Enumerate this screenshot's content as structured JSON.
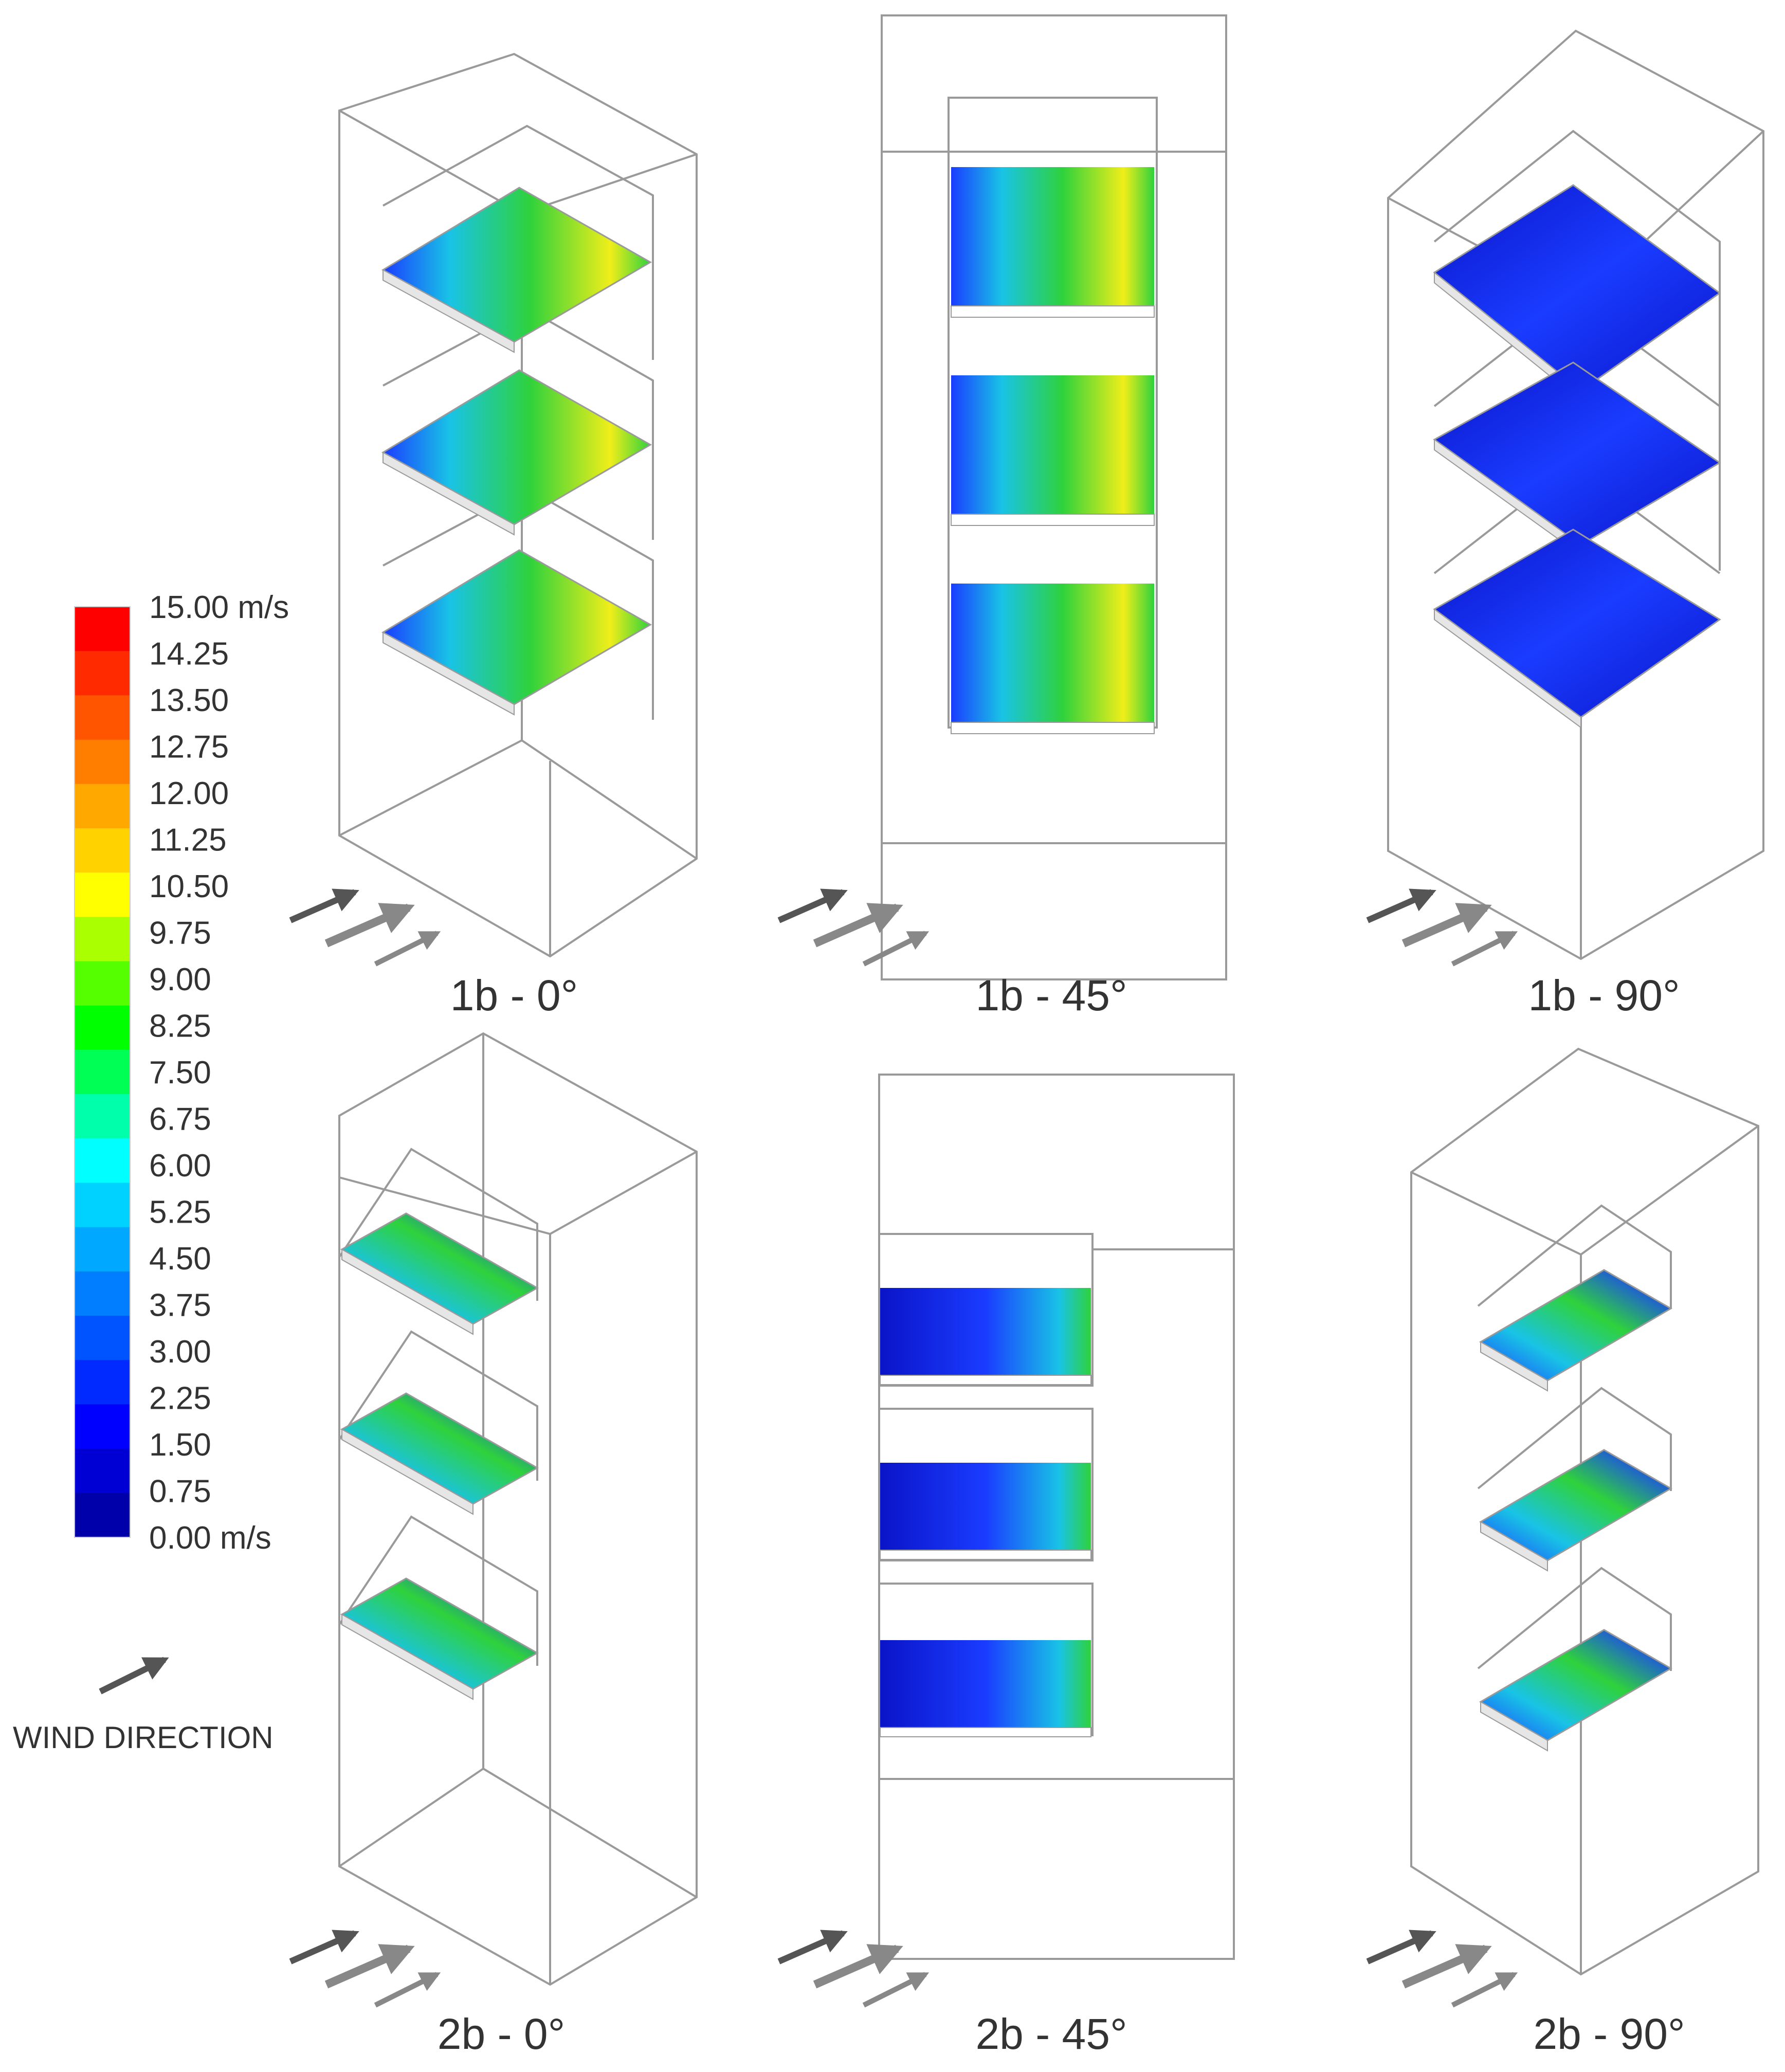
{
  "legend": {
    "labels": [
      "15.00 m/s",
      "14.25",
      "13.50",
      "12.75",
      "12.00",
      "11.25",
      "10.50",
      "9.75",
      "9.00",
      "8.25",
      "7.50",
      "6.75",
      "6.00",
      "5.25",
      "4.50",
      "3.75",
      "3.00",
      "2.25",
      "1.50",
      "0.75",
      "0.00 m/s"
    ],
    "colors": [
      "#ff0000",
      "#ff2a00",
      "#ff5400",
      "#ff7e00",
      "#ffa800",
      "#ffd200",
      "#ffff00",
      "#aaff00",
      "#55ff00",
      "#00ff00",
      "#00ff55",
      "#00ffaa",
      "#00ffff",
      "#00d2ff",
      "#00a8ff",
      "#007eff",
      "#0054ff",
      "#002aff",
      "#0000ff",
      "#0000d5",
      "#0000aa"
    ],
    "wind_label": "WIND DIRECTION",
    "wind_arrow_icon": "arrow-northeast-icon"
  },
  "panels": [
    {
      "id": "p1b0",
      "caption": "1b - 0°",
      "view": "iso",
      "slab_style": "mixed"
    },
    {
      "id": "p1b45",
      "caption": "1b - 45°",
      "view": "front",
      "slab_style": "mixed"
    },
    {
      "id": "p1b90",
      "caption": "1b - 90°",
      "view": "iso-diamond",
      "slab_style": "blue"
    },
    {
      "id": "p2b0",
      "caption": "2b - 0°",
      "view": "iso-side",
      "slab_style": "mixed"
    },
    {
      "id": "p2b45",
      "caption": "2b - 45°",
      "view": "front-side",
      "slab_style": "blue"
    },
    {
      "id": "p2b90",
      "caption": "2b - 90°",
      "view": "iso-small",
      "slab_style": "mixed"
    }
  ],
  "colors": {
    "outline": "#9a9a9a",
    "arrow_dark": "#555555",
    "arrow_light": "#888888",
    "contour_blue": "#1a3cff",
    "contour_deep": "#0a14c8",
    "contour_green": "#2fd23c",
    "contour_cyan": "#19c3e6",
    "contour_yellow": "#f0ee1a"
  }
}
